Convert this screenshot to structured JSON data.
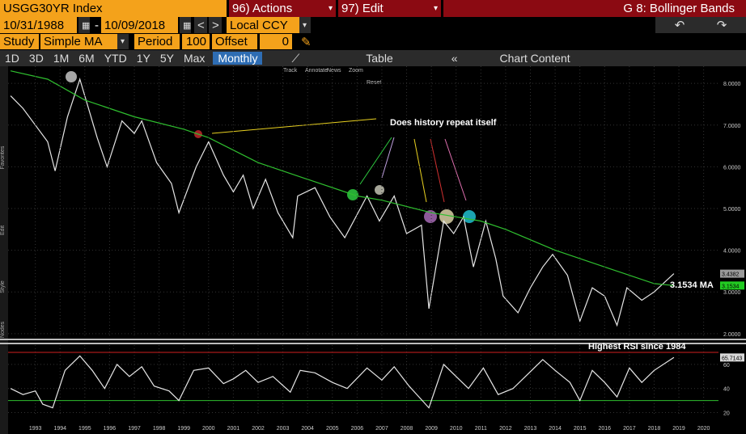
{
  "ui": {
    "ticker": "USGG30YR Index",
    "actions": "96) Actions",
    "edit": "97) Edit",
    "function": "G 8: Bollinger Bands",
    "start_date": "10/31/1988",
    "end_date": "10/09/2018",
    "currency": "Local CCY",
    "study_label": "Study",
    "study": "Simple MA",
    "period_label": "Period",
    "period": "100",
    "offset_label": "Offset",
    "offset": "0",
    "ranges": [
      "1D",
      "3D",
      "1M",
      "6M",
      "YTD",
      "1Y",
      "5Y",
      "Max"
    ],
    "frequency": "Monthly",
    "table": "Table",
    "chart_content": "Chart Content",
    "chart_tools": [
      "Track",
      "Annotate",
      "News",
      "Zoom",
      "Reset"
    ],
    "side_tabs": [
      "Favorites",
      "Edit",
      "Style",
      "Nodes"
    ]
  },
  "chart_data": [
    {
      "type": "line",
      "annotation": "Does history repeat itself",
      "ma_label": "3.1534 MA",
      "xlim": [
        1991.9,
        2020.6
      ],
      "ylim": [
        1.9,
        8.41
      ],
      "yticks": [
        {
          "value": 2,
          "label": "2.0000"
        },
        {
          "value": 3,
          "label": "3.0000"
        },
        {
          "value": 4,
          "label": "4.0000"
        },
        {
          "value": 5,
          "label": "5.0000"
        },
        {
          "value": 6,
          "label": "6.0000"
        },
        {
          "value": 7,
          "label": "7.0000"
        },
        {
          "value": 8,
          "label": "8.0000"
        }
      ],
      "grid": true,
      "marker_labels": [
        {
          "value": 3.4382,
          "label": "3.4382",
          "color": "#9a9a9a"
        },
        {
          "value": 3.1534,
          "label": "3.1534",
          "color": "#22cc22"
        }
      ],
      "series": [
        {
          "color": "#e6e6e6",
          "x": [
            1992.0,
            1992.5,
            1993.0,
            1993.5,
            1993.8,
            1994.3,
            1994.8,
            1995.5,
            1995.9,
            1996.5,
            1997.0,
            1997.3,
            1997.9,
            1998.5,
            1998.8,
            1999.5,
            2000.0,
            2000.6,
            2001.0,
            2001.4,
            2001.8,
            2002.3,
            2002.8,
            2003.4,
            2003.6,
            2004.3,
            2004.9,
            2005.5,
            2006.4,
            2006.9,
            2007.5,
            2008.0,
            2008.6,
            2008.9,
            2009.5,
            2009.9,
            2010.3,
            2010.7,
            2011.2,
            2011.6,
            2011.9,
            2012.5,
            2013.0,
            2013.5,
            2013.9,
            2014.5,
            2015.0,
            2015.5,
            2016.0,
            2016.5,
            2016.9,
            2017.5,
            2018.0,
            2018.8
          ],
          "values": [
            7.7,
            7.4,
            7.0,
            6.6,
            5.9,
            7.2,
            8.1,
            6.7,
            6.0,
            7.1,
            6.8,
            7.1,
            6.1,
            5.6,
            4.9,
            6.0,
            6.6,
            5.8,
            5.4,
            5.8,
            5.0,
            5.7,
            4.9,
            4.3,
            5.3,
            5.5,
            4.8,
            4.3,
            5.3,
            4.7,
            5.3,
            4.4,
            4.6,
            2.6,
            4.7,
            4.4,
            4.8,
            3.6,
            4.7,
            3.8,
            2.9,
            2.5,
            3.1,
            3.6,
            3.9,
            3.4,
            2.3,
            3.1,
            2.9,
            2.2,
            3.1,
            2.8,
            3.0,
            3.4382
          ]
        },
        {
          "color": "#2fbf2f",
          "x": [
            1992.0,
            1993.5,
            1995.0,
            1997.0,
            1999.0,
            2000.0,
            2002.0,
            2004.0,
            2006.0,
            2007.0,
            2009.0,
            2011.0,
            2012.0,
            2014.0,
            2016.0,
            2018.0,
            2018.8
          ],
          "values": [
            8.3,
            8.1,
            7.6,
            7.2,
            6.9,
            6.7,
            6.1,
            5.7,
            5.3,
            5.2,
            4.9,
            4.7,
            4.5,
            4.0,
            3.6,
            3.2,
            3.1534
          ]
        }
      ]
    },
    {
      "type": "line",
      "annotation": "Highest RSI since 1984",
      "xlim": [
        1991.9,
        2020.6
      ],
      "xticks": [
        1993,
        1994,
        1995,
        1996,
        1997,
        1998,
        1999,
        2000,
        2001,
        2002,
        2003,
        2004,
        2005,
        2006,
        2007,
        2008,
        2009,
        2010,
        2011,
        2012,
        2013,
        2014,
        2015,
        2016,
        2017,
        2018,
        2019,
        2020
      ],
      "ylim": [
        17,
        76
      ],
      "yticks": [
        20,
        40,
        60
      ],
      "grid": true,
      "hlines": [
        {
          "value": 70,
          "color": "#d02020"
        },
        {
          "value": 30,
          "color": "#2fbf2f"
        }
      ],
      "marker_labels": [
        {
          "value": 65.7143,
          "label": "65.7143",
          "color": "#d8d8d8"
        }
      ],
      "series": [
        {
          "color": "#e6e6e6",
          "x": [
            1992.0,
            1992.5,
            1993.0,
            1993.3,
            1993.7,
            1994.2,
            1994.8,
            1995.3,
            1995.8,
            1996.3,
            1996.8,
            1997.3,
            1997.8,
            1998.4,
            1998.8,
            1999.4,
            2000.0,
            2000.6,
            2001.0,
            2001.5,
            2002.0,
            2002.6,
            2003.3,
            2003.7,
            2004.3,
            2005.0,
            2005.6,
            2006.4,
            2007.0,
            2007.5,
            2008.1,
            2008.9,
            2009.5,
            2010.0,
            2010.5,
            2011.1,
            2011.7,
            2012.3,
            2012.8,
            2013.5,
            2014.0,
            2014.6,
            2015.0,
            2015.5,
            2016.0,
            2016.5,
            2017.0,
            2017.5,
            2018.0,
            2018.8
          ],
          "values": [
            40,
            35,
            38,
            27,
            24,
            55,
            67,
            55,
            40,
            60,
            50,
            58,
            42,
            38,
            30,
            55,
            57,
            44,
            48,
            55,
            45,
            50,
            37,
            55,
            53,
            45,
            40,
            57,
            47,
            58,
            42,
            24,
            60,
            50,
            40,
            57,
            35,
            40,
            50,
            64,
            55,
            45,
            30,
            55,
            45,
            33,
            57,
            45,
            55,
            65.7143
          ]
        }
      ]
    }
  ]
}
